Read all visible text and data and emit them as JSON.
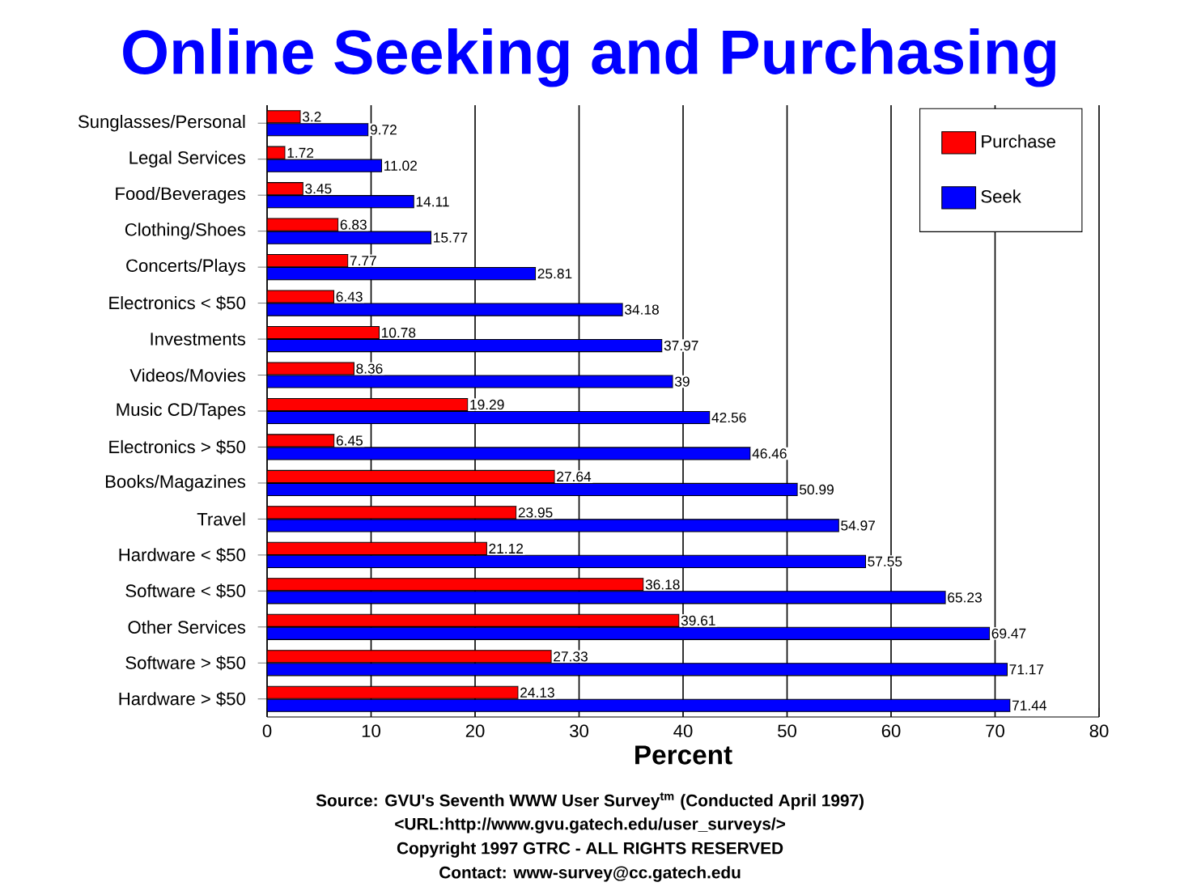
{
  "chart_data": {
    "type": "bar",
    "orientation": "horizontal",
    "title": "Online Seeking and Purchasing",
    "xlabel": "Percent",
    "categories": [
      "Sunglasses/Personal",
      "Legal Services",
      "Food/Beverages",
      "Clothing/Shoes",
      "Concerts/Plays",
      "Electronics < $50",
      "Investments",
      "Videos/Movies",
      "Music CD/Tapes",
      "Electronics > $50",
      "Books/Magazines",
      "Travel",
      "Hardware < $50",
      "Software < $50",
      "Other Services",
      "Software > $50",
      "Hardware > $50"
    ],
    "series": [
      {
        "name": "Purchase",
        "color": "#ff0000",
        "values": [
          3.2,
          1.72,
          3.45,
          6.83,
          7.77,
          6.43,
          10.78,
          8.36,
          19.29,
          6.45,
          27.64,
          23.95,
          21.12,
          36.18,
          39.61,
          27.33,
          24.13
        ]
      },
      {
        "name": "Seek",
        "color": "#0000ff",
        "values": [
          9.72,
          11.02,
          14.11,
          15.77,
          25.81,
          34.18,
          37.97,
          39,
          42.56,
          46.46,
          50.99,
          54.97,
          57.55,
          65.23,
          69.47,
          71.17,
          71.44
        ]
      }
    ],
    "xlim": [
      0,
      80
    ],
    "xticks": [
      0,
      10,
      20,
      30,
      40,
      50,
      60,
      70,
      80
    ],
    "grid": "x",
    "legend": "top right",
    "data_labels": true,
    "annotations": [
      "Source: GVU's Seventh WWW User Survey$^{tm}$ (Conducted April 1997)",
      "<URL:http://www.gvu.gatech.edu/user_surveys/>",
      "Copyright 1997 GTRC - ALL RIGHTS RESERVED",
      "Contact: www-survey@cc.gatech.edu"
    ]
  }
}
